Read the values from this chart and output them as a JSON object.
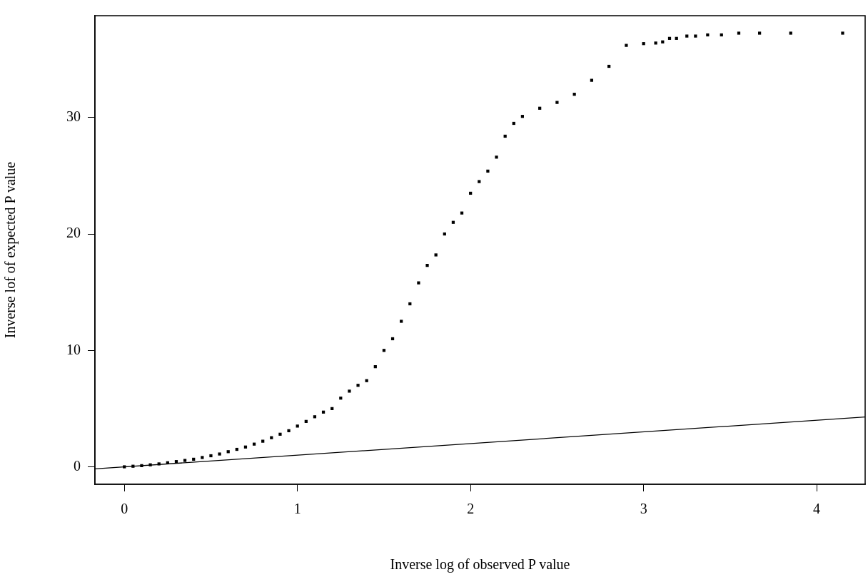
{
  "chart_data": {
    "type": "scatter",
    "xlabel": "Inverse log of observed P value",
    "ylabel": "Inverse lof of expected P value",
    "xlim": [
      -0.17,
      4.28
    ],
    "ylim": [
      -1.5,
      38.75
    ],
    "xticks": [
      0,
      1,
      2,
      3,
      4
    ],
    "yticks": [
      0,
      10,
      20,
      30
    ],
    "grid": false,
    "legend": false,
    "series": [
      {
        "marker": "square",
        "color": "#000000",
        "x": [
          0,
          0.05,
          0.1,
          0.15,
          0.2,
          0.25,
          0.3,
          0.35,
          0.4,
          0.45,
          0.5,
          0.55,
          0.6,
          0.65,
          0.7,
          0.75,
          0.8,
          0.85,
          0.9,
          0.95,
          1.0,
          1.05,
          1.1,
          1.15,
          1.2,
          1.25,
          1.3,
          1.35,
          1.4,
          1.45,
          1.5,
          1.55,
          1.6,
          1.65,
          1.7,
          1.75,
          1.8,
          1.85,
          1.9,
          1.95,
          2.0,
          2.05,
          2.1,
          2.15,
          2.2,
          2.25,
          2.3,
          2.4,
          2.5,
          2.6,
          2.7,
          2.8,
          2.9,
          3.0,
          3.07,
          3.11,
          3.15,
          3.19,
          3.25,
          3.3,
          3.37,
          3.45,
          3.55,
          3.67,
          3.85,
          4.15
        ],
        "values": [
          0,
          0.05,
          0.1,
          0.17,
          0.25,
          0.35,
          0.45,
          0.55,
          0.65,
          0.8,
          0.95,
          1.1,
          1.3,
          1.5,
          1.7,
          1.95,
          2.2,
          2.5,
          2.8,
          3.1,
          3.5,
          3.9,
          4.3,
          4.7,
          5.0,
          5.9,
          6.5,
          7.0,
          7.4,
          8.6,
          10.0,
          11.0,
          12.5,
          14.0,
          15.8,
          17.3,
          18.2,
          20.0,
          21.0,
          21.8,
          23.5,
          24.5,
          25.4,
          26.6,
          28.4,
          29.5,
          30.1,
          30.8,
          31.3,
          32.0,
          33.2,
          34.4,
          36.2,
          36.35,
          36.4,
          36.5,
          36.8,
          36.8,
          37.0,
          37.0,
          37.1,
          37.1,
          37.25,
          37.25,
          37.25,
          37.25
        ]
      },
      {
        "type": "line",
        "marker": "none",
        "color": "#000000",
        "x": [
          -0.17,
          4.28
        ],
        "values": [
          -0.17,
          4.28
        ]
      }
    ]
  }
}
